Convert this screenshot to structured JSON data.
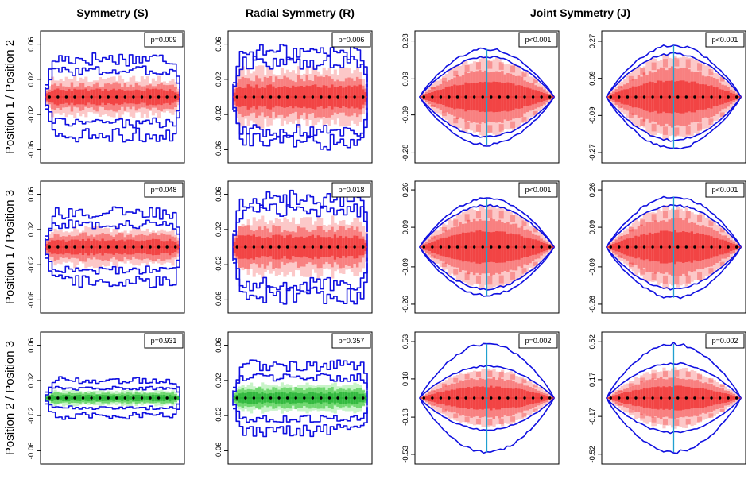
{
  "column_titles": [
    {
      "text": "Symmetry (S)",
      "center_panel_cols": [
        0
      ]
    },
    {
      "text": "Radial Symmetry (R)",
      "center_panel_cols": [
        1
      ]
    },
    {
      "text": "Joint Symmetry (J)",
      "center_panel_cols": [
        2,
        3
      ]
    }
  ],
  "row_titles": [
    "Position 1 / Position 2",
    "Position 1 / Position 3",
    "Position 2 / Position 3"
  ],
  "colors": {
    "envelope": "#1010e0",
    "center_line": "#20a0d0",
    "red_dark": "#f03030",
    "red_mid": "#f88080",
    "red_light": "#fcc8c8",
    "green_dark": "#20b030",
    "green_mid": "#70d870",
    "green_light": "#c8f4c8",
    "points": "#000000"
  },
  "chart_data": [
    {
      "row": 0,
      "col": 0,
      "type": "band",
      "shape": "flat",
      "color": "red",
      "p_label": "p=0.009",
      "ylim": [
        -0.075,
        0.075
      ],
      "yticks": [
        "0.06",
        "0.02",
        "-0.02",
        "-0.06"
      ],
      "ytick_values": [
        0.06,
        0.02,
        -0.02,
        -0.06
      ],
      "band_half_width": 0.02,
      "envelope_inner": 0.032,
      "envelope_outer": 0.047,
      "n_points": 16
    },
    {
      "row": 0,
      "col": 1,
      "type": "band",
      "shape": "flat",
      "color": "red",
      "p_label": "p=0.006",
      "ylim": [
        -0.075,
        0.075
      ],
      "yticks": [
        "0.06",
        "0.02",
        "-0.02",
        "-0.06"
      ],
      "ytick_values": [
        0.06,
        0.02,
        -0.02,
        -0.06
      ],
      "band_half_width": 0.03,
      "envelope_inner": 0.042,
      "envelope_outer": 0.055,
      "n_points": 16
    },
    {
      "row": 0,
      "col": 2,
      "type": "band",
      "shape": "lens",
      "color": "red",
      "p_label": "p<0.001",
      "ylim": [
        -0.33,
        0.33
      ],
      "yticks": [
        "0.28",
        "0.09",
        "-0.09",
        "-0.28"
      ],
      "ytick_values": [
        0.28,
        0.09,
        -0.09,
        -0.28
      ],
      "band_half_width": 0.19,
      "envelope_inner": 0.2,
      "envelope_outer": 0.24,
      "n_points": 16
    },
    {
      "row": 0,
      "col": 3,
      "type": "band",
      "shape": "lens",
      "color": "red",
      "p_label": "p<0.001",
      "ylim": [
        -0.32,
        0.32
      ],
      "yticks": [
        "0.27",
        "0.09",
        "-0.09",
        "-0.27"
      ],
      "ytick_values": [
        0.27,
        0.09,
        -0.09,
        -0.27
      ],
      "band_half_width": 0.2,
      "envelope_inner": 0.21,
      "envelope_outer": 0.25,
      "n_points": 16
    },
    {
      "row": 1,
      "col": 0,
      "type": "band",
      "shape": "flat",
      "color": "red",
      "p_label": "p=0.048",
      "ylim": [
        -0.075,
        0.075
      ],
      "yticks": [
        "0.06",
        "0.02",
        "-0.02",
        "-0.06"
      ],
      "ytick_values": [
        0.06,
        0.02,
        -0.02,
        -0.06
      ],
      "band_half_width": 0.02,
      "envelope_inner": 0.028,
      "envelope_outer": 0.042,
      "n_points": 16
    },
    {
      "row": 1,
      "col": 1,
      "type": "band",
      "shape": "flat",
      "color": "red",
      "p_label": "p=0.018",
      "ylim": [
        -0.075,
        0.075
      ],
      "yticks": [
        "0.06",
        "0.02",
        "-0.02",
        "-0.06"
      ],
      "ytick_values": [
        0.06,
        0.02,
        -0.02,
        -0.06
      ],
      "band_half_width": 0.03,
      "envelope_inner": 0.045,
      "envelope_outer": 0.06,
      "n_points": 16
    },
    {
      "row": 1,
      "col": 2,
      "type": "band",
      "shape": "lens",
      "color": "red",
      "p_label": "p<0.001",
      "ylim": [
        -0.3,
        0.3
      ],
      "yticks": [
        "0.26",
        "0.09",
        "-0.09",
        "-0.26"
      ],
      "ytick_values": [
        0.26,
        0.09,
        -0.09,
        -0.26
      ],
      "band_half_width": 0.18,
      "envelope_inner": 0.19,
      "envelope_outer": 0.22,
      "n_points": 16
    },
    {
      "row": 1,
      "col": 3,
      "type": "band",
      "shape": "lens",
      "color": "red",
      "p_label": "p<0.001",
      "ylim": [
        -0.3,
        0.3
      ],
      "yticks": [
        "0.26",
        "0.09",
        "-0.09",
        "-0.26"
      ],
      "ytick_values": [
        0.26,
        0.09,
        -0.09,
        -0.26
      ],
      "band_half_width": 0.18,
      "envelope_inner": 0.19,
      "envelope_outer": 0.23,
      "n_points": 16
    },
    {
      "row": 2,
      "col": 0,
      "type": "band",
      "shape": "flat",
      "color": "green",
      "p_label": "p=0.931",
      "ylim": [
        -0.075,
        0.075
      ],
      "yticks": [
        "0.06",
        "0.02",
        "-0.02",
        "-0.06"
      ],
      "ytick_values": [
        0.06,
        0.02,
        -0.02,
        -0.06
      ],
      "band_half_width": 0.008,
      "envelope_inner": 0.012,
      "envelope_outer": 0.022,
      "n_points": 16
    },
    {
      "row": 2,
      "col": 1,
      "type": "band",
      "shape": "flat",
      "color": "green",
      "p_label": "p=0.357",
      "ylim": [
        -0.075,
        0.075
      ],
      "yticks": [
        "0.06",
        "0.02",
        "-0.02",
        "-0.06"
      ],
      "ytick_values": [
        0.06,
        0.02,
        -0.02,
        -0.06
      ],
      "band_half_width": 0.015,
      "envelope_inner": 0.025,
      "envelope_outer": 0.04,
      "n_points": 16
    },
    {
      "row": 2,
      "col": 2,
      "type": "band",
      "shape": "lens",
      "color": "red",
      "p_label": "p=0.002",
      "ylim": [
        -0.62,
        0.62
      ],
      "yticks": [
        "0.53",
        "0.18",
        "-0.18",
        "-0.53"
      ],
      "ytick_values": [
        0.53,
        0.18,
        -0.18,
        -0.53
      ],
      "band_half_width": 0.27,
      "envelope_inner": 0.3,
      "envelope_outer": 0.51,
      "n_points": 16
    },
    {
      "row": 2,
      "col": 3,
      "type": "band",
      "shape": "lens",
      "color": "red",
      "p_label": "p=0.002",
      "ylim": [
        -0.61,
        0.61
      ],
      "yticks": [
        "0.52",
        "0.17",
        "-0.17",
        "-0.52"
      ],
      "ytick_values": [
        0.52,
        0.17,
        -0.17,
        -0.52
      ],
      "band_half_width": 0.27,
      "envelope_inner": 0.32,
      "envelope_outer": 0.5,
      "n_points": 16
    }
  ]
}
